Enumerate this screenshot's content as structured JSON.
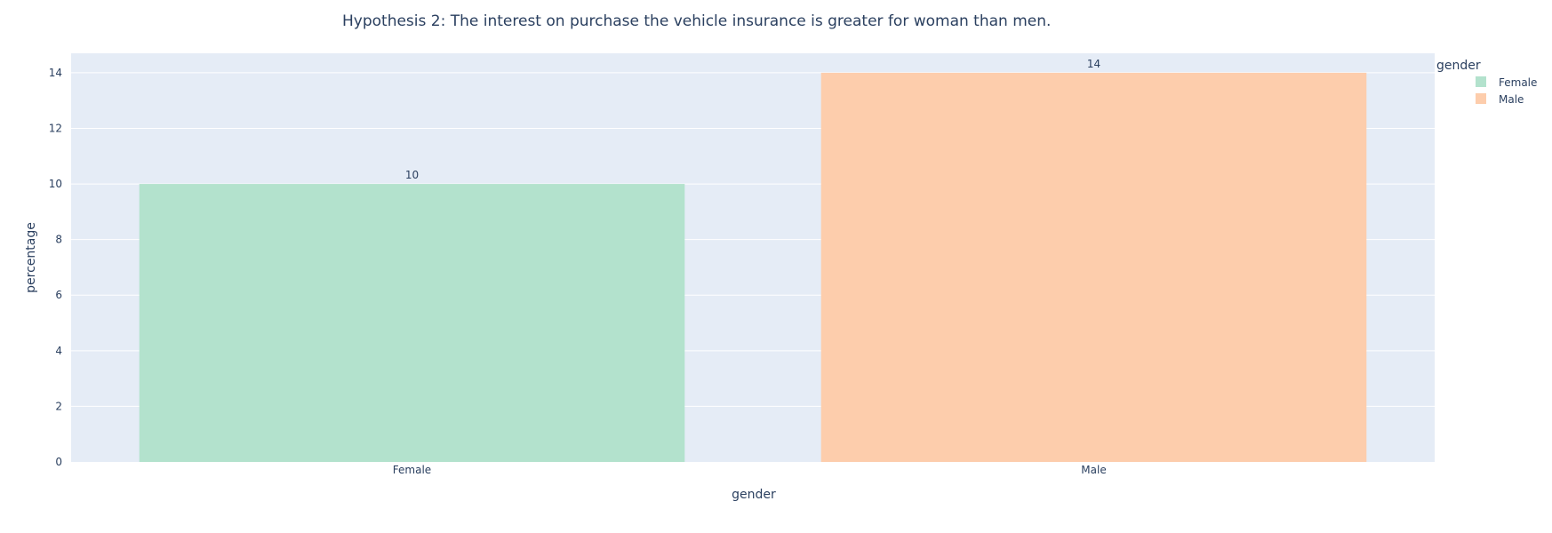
{
  "chart_data": {
    "type": "bar",
    "title": "Hypothesis 2: The interest on purchase the vehicle insurance is greater for woman than men.",
    "xlabel": "gender",
    "ylabel": "percentage",
    "categories": [
      "Female",
      "Male"
    ],
    "values": [
      10,
      14
    ],
    "value_labels": [
      "10",
      "14"
    ],
    "ylim": [
      0,
      14.7
    ],
    "yticks": [
      0,
      2,
      4,
      6,
      8,
      10,
      12,
      14
    ],
    "ytick_labels": [
      "0",
      "2",
      "4",
      "6",
      "8",
      "10",
      "12",
      "14"
    ],
    "grid": true,
    "legend": {
      "title": "gender",
      "placement": "top-right",
      "entries": [
        "Female",
        "Male"
      ]
    },
    "colors": {
      "Female": "#b3e2cd",
      "Male": "#fdcdac",
      "plot_bg": "#e5ecf6",
      "grid": "#ffffff",
      "text": "#2a3f5f"
    }
  }
}
